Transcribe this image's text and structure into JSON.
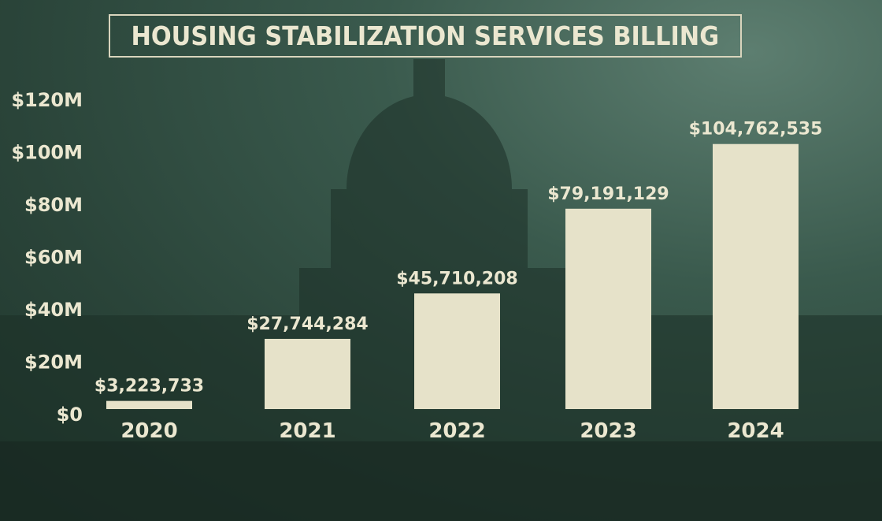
{
  "chart_data": {
    "type": "bar",
    "title": "HOUSING STABILIZATION SERVICES BILLING",
    "categories": [
      "2020",
      "2021",
      "2022",
      "2023",
      "2024"
    ],
    "values": [
      3223733,
      27744284,
      45710208,
      79191129,
      104762535
    ],
    "data_labels": [
      "$3,223,733",
      "$27,744,284",
      "$45,710,208",
      "$79,191,129",
      "$104,762,535"
    ],
    "yticks": [
      {
        "value": 0,
        "label": "$0"
      },
      {
        "value": 20000000,
        "label": "$20M"
      },
      {
        "value": 40000000,
        "label": "$40M"
      },
      {
        "value": 60000000,
        "label": "$60M"
      },
      {
        "value": 80000000,
        "label": "$80M"
      },
      {
        "value": 100000000,
        "label": "$100M"
      },
      {
        "value": 120000000,
        "label": "$120M"
      }
    ],
    "ylim": [
      0,
      120000000
    ],
    "xlabel": "",
    "ylabel": "",
    "grid": false,
    "colors": {
      "bar": "#e6e2c9",
      "background": "#2e4a3f"
    }
  }
}
